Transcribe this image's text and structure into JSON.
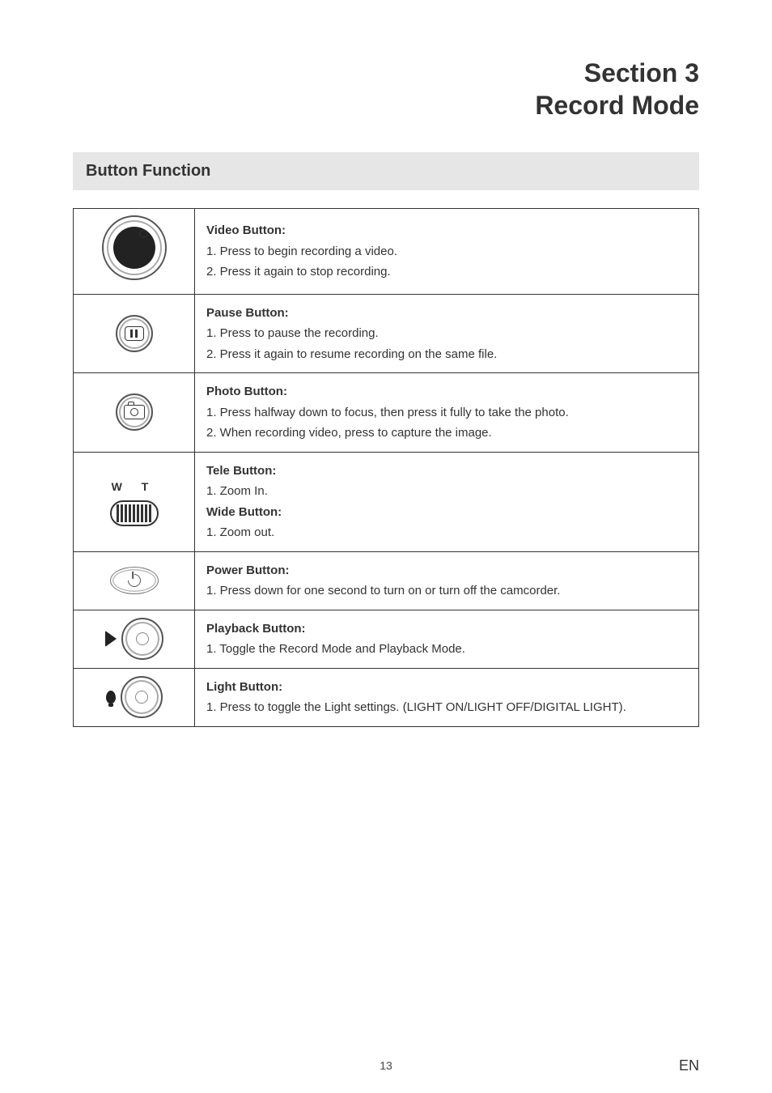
{
  "colors": {
    "background": "#ffffff",
    "text": "#333333",
    "section_header_bg": "#e6e6e6",
    "border": "#333333"
  },
  "typography": {
    "body_family": "Arial, Helvetica, sans-serif",
    "title_size_pt": 24,
    "section_header_size_pt": 15,
    "body_size_pt": 11
  },
  "title": {
    "line1": "Section 3",
    "line2": "Record Mode"
  },
  "section_header": "Button Function",
  "rows": [
    {
      "icon": "video",
      "heading1": "Video Button:",
      "items1": [
        "1.  Press to begin recording a video.",
        "2.  Press it again to stop recording."
      ]
    },
    {
      "icon": "pause",
      "heading1": "Pause Button:",
      "items1": [
        "1.  Press to pause the recording.",
        "2.  Press it again to resume recording on the same file."
      ]
    },
    {
      "icon": "photo",
      "heading1": "Photo Button:",
      "items1": [
        "1.  Press halfway down to focus, then press it fully to take the photo.",
        "2.  When recording video, press to capture the image."
      ]
    },
    {
      "icon": "zoom",
      "heading1": "Tele Button:",
      "items1": [
        "1.  Zoom In."
      ],
      "heading2": "Wide Button:",
      "items2": [
        "1.  Zoom out."
      ]
    },
    {
      "icon": "power",
      "heading1": "Power Button:",
      "items1": [
        "1.  Press down for one second to turn on or turn off the camcorder."
      ]
    },
    {
      "icon": "playback",
      "heading1": "Playback Button:",
      "items1": [
        "1.  Toggle the Record Mode and Playback Mode."
      ]
    },
    {
      "icon": "light",
      "heading1": "Light Button:",
      "items1": [
        "1.  Press to toggle the Light settings. (LIGHT ON/LIGHT OFF/DIGITAL LIGHT)."
      ]
    }
  ],
  "zoom_labels": "W   T",
  "footer": {
    "page": "13",
    "lang": "EN"
  }
}
